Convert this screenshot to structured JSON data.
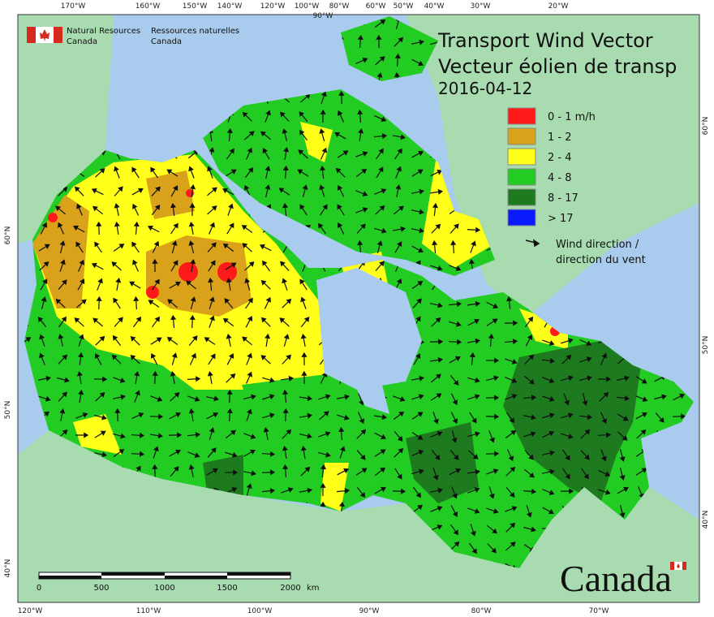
{
  "header": {
    "org_en": [
      "Natural Resources",
      "Canada"
    ],
    "org_fr": [
      "Ressources naturelles",
      "Canada"
    ]
  },
  "title": {
    "line1": "Transport Wind Vector",
    "line2": "Vecteur éolien de transp",
    "date": "2016-04-12"
  },
  "legend": {
    "items": [
      {
        "label": "0 - 1 m/h",
        "color": "#ff1a1a"
      },
      {
        "label": "1 - 2",
        "color": "#d9a21a"
      },
      {
        "label": "2 - 4",
        "color": "#ffff1a"
      },
      {
        "label": "4 - 8",
        "color": "#22cc22"
      },
      {
        "label": "8 - 17",
        "color": "#1e7a1e"
      },
      {
        "label": "> 17",
        "color": "#0a1aff"
      }
    ],
    "arrow_label": [
      "Wind direction /",
      "direction du vent"
    ]
  },
  "graticule": {
    "top": [
      "170°W",
      "160°W",
      "150°W",
      "140°W",
      "120°W",
      "100°W",
      "90°W",
      "80°W",
      "60°W",
      "50°W",
      "40°W",
      "30°W",
      "20°W"
    ],
    "bottom": [
      "120°W",
      "110°W",
      "100°W",
      "90°W",
      "80°W",
      "70°W"
    ],
    "left": [
      "60°N",
      "50°N",
      "40°N"
    ],
    "right": [
      "60°N",
      "50°N",
      "40°N"
    ]
  },
  "scale_bar": {
    "labels": [
      "0",
      "500",
      "1000",
      "1500",
      "2000"
    ],
    "unit": "km"
  },
  "wordmark": "Canada"
}
